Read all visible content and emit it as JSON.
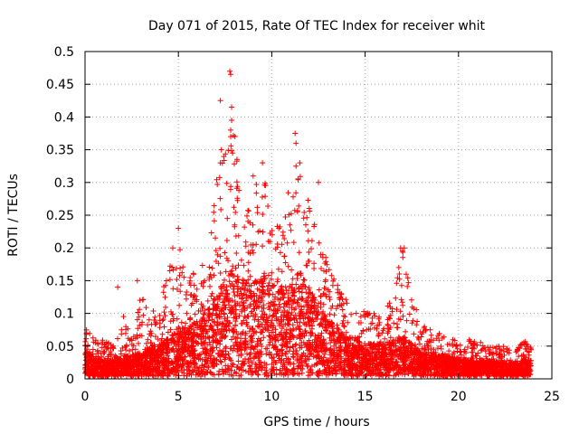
{
  "chart_data": {
    "type": "scatter",
    "title": "Day 071 of 2015, Rate Of TEC Index for receiver whit",
    "xlabel": "GPS time / hours",
    "ylabel": "ROTI / TECUs",
    "xlim": [
      0,
      25
    ],
    "ylim": [
      0,
      0.5
    ],
    "xticks": [
      "0",
      "5",
      "10",
      "15",
      "20",
      "25"
    ],
    "yticks": [
      "0",
      "0.05",
      "0.1",
      "0.15",
      "0.2",
      "0.25",
      "0.3",
      "0.35",
      "0.4",
      "0.45",
      "0.5"
    ],
    "grid": true,
    "marker": "plus",
    "marker_color": "#ff0000",
    "envelope": {
      "x": [
        0,
        0.5,
        1,
        1.5,
        2,
        2.5,
        3,
        3.5,
        4,
        4.5,
        5,
        5.5,
        6,
        6.5,
        7,
        7.5,
        8,
        8.5,
        9,
        9.5,
        10,
        10.5,
        11,
        11.5,
        12,
        12.5,
        13,
        13.5,
        14,
        14.5,
        15,
        15.5,
        16,
        16.5,
        17,
        17.5,
        18,
        18.5,
        19,
        19.5,
        20,
        20.5,
        21,
        21.5,
        22,
        22.5,
        23,
        23.5,
        23.9
      ],
      "upper": [
        0.08,
        0.06,
        0.06,
        0.05,
        0.1,
        0.06,
        0.13,
        0.1,
        0.12,
        0.17,
        0.22,
        0.15,
        0.17,
        0.18,
        0.3,
        0.35,
        0.38,
        0.25,
        0.3,
        0.32,
        0.25,
        0.24,
        0.3,
        0.33,
        0.28,
        0.22,
        0.18,
        0.15,
        0.13,
        0.1,
        0.11,
        0.1,
        0.1,
        0.13,
        0.2,
        0.13,
        0.08,
        0.08,
        0.07,
        0.06,
        0.06,
        0.06,
        0.06,
        0.05,
        0.05,
        0.05,
        0.04,
        0.06,
        0.05
      ],
      "typical": [
        0.03,
        0.025,
        0.02,
        0.02,
        0.025,
        0.025,
        0.03,
        0.035,
        0.04,
        0.05,
        0.06,
        0.06,
        0.07,
        0.08,
        0.1,
        0.12,
        0.14,
        0.12,
        0.12,
        0.13,
        0.12,
        0.11,
        0.12,
        0.13,
        0.11,
        0.09,
        0.07,
        0.06,
        0.05,
        0.045,
        0.04,
        0.04,
        0.04,
        0.045,
        0.05,
        0.04,
        0.03,
        0.03,
        0.025,
        0.025,
        0.022,
        0.02,
        0.02,
        0.02,
        0.018,
        0.018,
        0.015,
        0.02,
        0.02
      ]
    },
    "outliers": [
      [
        7.75,
        0.47
      ],
      [
        7.8,
        0.465
      ],
      [
        7.25,
        0.425
      ],
      [
        7.85,
        0.415
      ],
      [
        7.85,
        0.395
      ],
      [
        7.8,
        0.38
      ],
      [
        11.25,
        0.375
      ],
      [
        11.3,
        0.36
      ],
      [
        7.8,
        0.37
      ],
      [
        7.3,
        0.35
      ],
      [
        7.9,
        0.345
      ],
      [
        7.25,
        0.33
      ],
      [
        9.5,
        0.33
      ],
      [
        11.5,
        0.33
      ],
      [
        11.3,
        0.325
      ],
      [
        9.0,
        0.31
      ],
      [
        12.5,
        0.3
      ],
      [
        16.9,
        0.2
      ],
      [
        17.0,
        0.195
      ],
      [
        17.1,
        0.2
      ],
      [
        1.75,
        0.14
      ],
      [
        2.8,
        0.15
      ],
      [
        5.0,
        0.23
      ],
      [
        4.7,
        0.2
      ],
      [
        16.8,
        0.17
      ],
      [
        17.2,
        0.16
      ]
    ]
  }
}
